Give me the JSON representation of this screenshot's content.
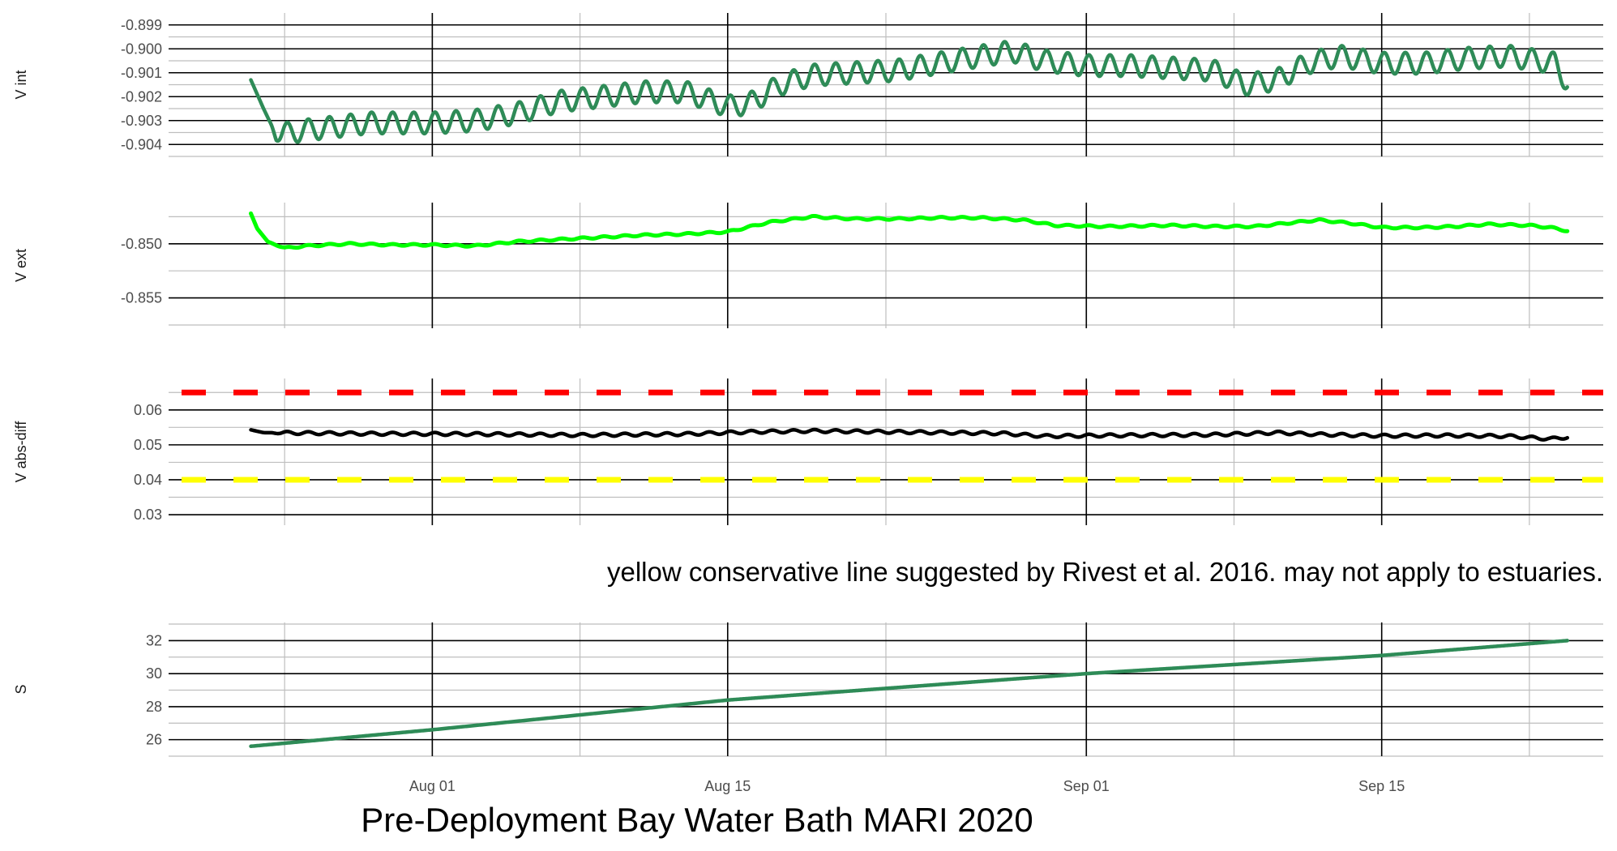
{
  "title": "Pre-Deployment Bay Water Bath MARI 2020",
  "annotation": "yellow conservative line suggested by Rivest et al. 2016. may not apply to estuaries.",
  "x_axis": {
    "unit": "day of year 2020 (Jul 24 = 0)",
    "range": [
      -4.5,
      63.5
    ],
    "major_ticks": [
      {
        "value": 8,
        "label": "Aug 01"
      },
      {
        "value": 22,
        "label": "Aug 15"
      },
      {
        "value": 39,
        "label": "Sep 01"
      },
      {
        "value": 53,
        "label": "Sep 15"
      }
    ],
    "minor_ticks": [
      1,
      15,
      29.5,
      46,
      60
    ],
    "data_start": -0.6,
    "data_end": 61.8
  },
  "colors": {
    "vint": "#2e8b57",
    "vext": "#00ff00",
    "vdiff": "#000000",
    "red_threshold": "#ff0000",
    "yellow_threshold": "#ffff00",
    "salinity": "#2e8b57",
    "grid_major": "#000000",
    "grid_minor": "#bebebe"
  },
  "chart_data": [
    {
      "type": "line",
      "ylabel": "V int",
      "ylim": [
        -0.9045,
        -0.8985
      ],
      "yticks": [
        {
          "value": -0.899,
          "label": "-0.899"
        },
        {
          "value": -0.9,
          "label": "-0.900"
        },
        {
          "value": -0.901,
          "label": "-0.901"
        },
        {
          "value": -0.902,
          "label": "-0.902"
        },
        {
          "value": -0.903,
          "label": "-0.903"
        },
        {
          "value": -0.904,
          "label": "-0.904"
        }
      ],
      "yminor": [
        -0.8995,
        -0.9005,
        -0.9015,
        -0.9025,
        -0.9035,
        -0.9045
      ],
      "series": [
        {
          "name": "V int",
          "oscillation_amplitude": 0.00045,
          "oscillation_period_days": 1.0,
          "trend": [
            [
              -0.6,
              -0.9013
            ],
            [
              0.0,
              -0.9025
            ],
            [
              0.6,
              -0.9036
            ],
            [
              2.0,
              -0.9034
            ],
            [
              5.0,
              -0.9031
            ],
            [
              8.0,
              -0.9031
            ],
            [
              10.0,
              -0.903
            ],
            [
              12.0,
              -0.9027
            ],
            [
              14.0,
              -0.9022
            ],
            [
              16.0,
              -0.902
            ],
            [
              18.0,
              -0.9018
            ],
            [
              20.0,
              -0.9018
            ],
            [
              22.0,
              -0.9024
            ],
            [
              23.0,
              -0.9023
            ],
            [
              24.5,
              -0.9015
            ],
            [
              26.0,
              -0.9011
            ],
            [
              28.0,
              -0.901
            ],
            [
              30.0,
              -0.9009
            ],
            [
              32.0,
              -0.9006
            ],
            [
              34.0,
              -0.9003
            ],
            [
              35.5,
              -0.9001
            ],
            [
              37.0,
              -0.9005
            ],
            [
              39.0,
              -0.9007
            ],
            [
              41.0,
              -0.9007
            ],
            [
              43.0,
              -0.9008
            ],
            [
              45.0,
              -0.9009
            ],
            [
              46.5,
              -0.9015
            ],
            [
              48.0,
              -0.9013
            ],
            [
              49.5,
              -0.9006
            ],
            [
              51.0,
              -0.9003
            ],
            [
              53.0,
              -0.9006
            ],
            [
              55.0,
              -0.9006
            ],
            [
              57.0,
              -0.9004
            ],
            [
              59.0,
              -0.9003
            ],
            [
              60.5,
              -0.9005
            ],
            [
              61.2,
              -0.9006
            ],
            [
              61.8,
              -0.9014
            ]
          ]
        }
      ]
    },
    {
      "type": "line",
      "ylabel": "V ext",
      "ylim": [
        -0.8578,
        -0.8462
      ],
      "yticks": [
        {
          "value": -0.85,
          "label": "-0.850"
        },
        {
          "value": -0.855,
          "label": "-0.855"
        }
      ],
      "yminor": [
        -0.8475,
        -0.8525,
        -0.8575
      ],
      "series": [
        {
          "name": "V ext",
          "oscillation_amplitude": 8e-05,
          "oscillation_period_days": 1.0,
          "trend": [
            [
              -0.6,
              -0.8472
            ],
            [
              -0.3,
              -0.8486
            ],
            [
              0.2,
              -0.8498
            ],
            [
              1.0,
              -0.8504
            ],
            [
              2.0,
              -0.8502
            ],
            [
              4.0,
              -0.85
            ],
            [
              6.0,
              -0.8501
            ],
            [
              8.0,
              -0.8501
            ],
            [
              10.0,
              -0.8502
            ],
            [
              12.0,
              -0.8498
            ],
            [
              14.0,
              -0.8496
            ],
            [
              16.0,
              -0.8494
            ],
            [
              18.0,
              -0.8492
            ],
            [
              20.0,
              -0.8491
            ],
            [
              22.0,
              -0.8489
            ],
            [
              24.0,
              -0.848
            ],
            [
              26.0,
              -0.8475
            ],
            [
              28.0,
              -0.8477
            ],
            [
              30.0,
              -0.8477
            ],
            [
              32.0,
              -0.8476
            ],
            [
              34.0,
              -0.8476
            ],
            [
              36.0,
              -0.8478
            ],
            [
              37.5,
              -0.8483
            ],
            [
              40.0,
              -0.8484
            ],
            [
              43.0,
              -0.8483
            ],
            [
              45.0,
              -0.8484
            ],
            [
              47.0,
              -0.8484
            ],
            [
              48.5,
              -0.8481
            ],
            [
              50.0,
              -0.8478
            ],
            [
              51.5,
              -0.8481
            ],
            [
              53.0,
              -0.8485
            ],
            [
              55.0,
              -0.8485
            ],
            [
              56.5,
              -0.8484
            ],
            [
              58.0,
              -0.8482
            ],
            [
              60.0,
              -0.8483
            ],
            [
              61.0,
              -0.8485
            ],
            [
              61.8,
              -0.8488
            ]
          ]
        }
      ]
    },
    {
      "type": "line",
      "ylabel": "V abs-diff",
      "ylim": [
        0.027,
        0.069
      ],
      "yticks": [
        {
          "value": 0.06,
          "label": "0.06"
        },
        {
          "value": 0.05,
          "label": "0.05"
        },
        {
          "value": 0.04,
          "label": "0.04"
        },
        {
          "value": 0.03,
          "label": "0.03"
        }
      ],
      "yminor": [
        0.065,
        0.055,
        0.045,
        0.035
      ],
      "hlines": [
        {
          "name": "red threshold",
          "value": 0.065,
          "style": "dashed"
        },
        {
          "name": "yellow conservative threshold",
          "value": 0.04,
          "style": "dashed"
        }
      ],
      "series": [
        {
          "name": "V abs-diff",
          "oscillation_amplitude": 0.0004,
          "oscillation_period_days": 1.0,
          "trend": [
            [
              -0.6,
              0.0543
            ],
            [
              0.0,
              0.0535
            ],
            [
              5.0,
              0.0532
            ],
            [
              10.0,
              0.0531
            ],
            [
              15.0,
              0.0528
            ],
            [
              20.0,
              0.0531
            ],
            [
              23.0,
              0.0537
            ],
            [
              26.0,
              0.054
            ],
            [
              30.0,
              0.0537
            ],
            [
              35.0,
              0.0533
            ],
            [
              37.0,
              0.0525
            ],
            [
              40.0,
              0.0527
            ],
            [
              45.0,
              0.0529
            ],
            [
              48.0,
              0.0535
            ],
            [
              50.0,
              0.053
            ],
            [
              53.0,
              0.0526
            ],
            [
              56.0,
              0.0527
            ],
            [
              59.0,
              0.0525
            ],
            [
              61.0,
              0.0517
            ],
            [
              61.8,
              0.0522
            ]
          ]
        }
      ]
    },
    {
      "type": "line",
      "ylabel": "S",
      "ylim": [
        25.0,
        33.1
      ],
      "yticks": [
        {
          "value": 32,
          "label": "32"
        },
        {
          "value": 30,
          "label": "30"
        },
        {
          "value": 28,
          "label": "28"
        },
        {
          "value": 26,
          "label": "26"
        }
      ],
      "yminor": [
        33,
        31,
        29,
        27,
        25
      ],
      "series": [
        {
          "name": "S",
          "oscillation_amplitude": 0,
          "oscillation_period_days": 1.0,
          "trend": [
            [
              -0.6,
              25.6
            ],
            [
              8.0,
              26.6
            ],
            [
              22.0,
              28.4
            ],
            [
              39.0,
              30.0
            ],
            [
              53.0,
              31.1
            ],
            [
              61.8,
              32.0
            ]
          ]
        }
      ]
    }
  ]
}
